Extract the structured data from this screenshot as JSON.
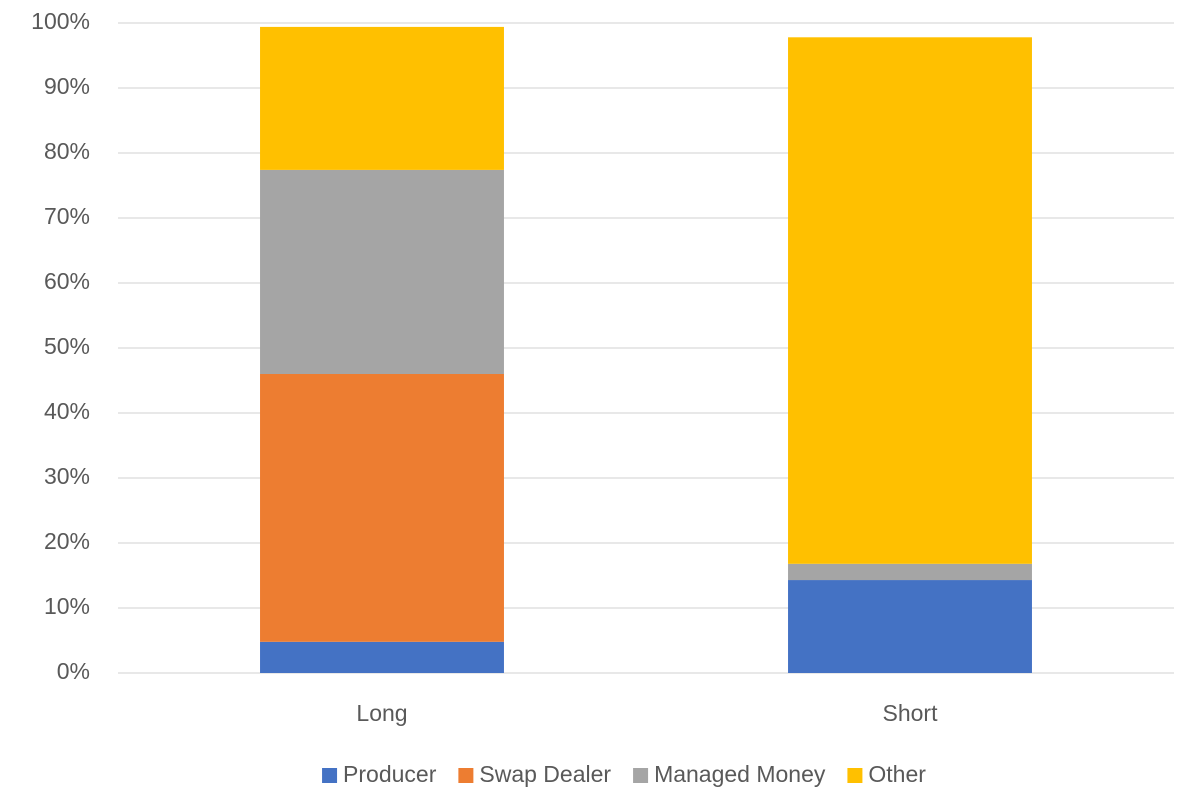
{
  "chart_data": {
    "type": "stacked_bar",
    "categories": [
      "Long",
      "Short"
    ],
    "series": [
      {
        "name": "Producer",
        "color": "#4472c4",
        "values": [
          4.8,
          14.3
        ]
      },
      {
        "name": "Swap Dealer",
        "color": "#ed7d31",
        "values": [
          41.2,
          0
        ]
      },
      {
        "name": "Managed Money",
        "color": "#a5a5a5",
        "values": [
          31.4,
          2.5
        ]
      },
      {
        "name": "Other",
        "color": "#ffc000",
        "values": [
          22.0,
          81.0
        ]
      }
    ],
    "ylim": [
      0,
      100
    ],
    "yticks": [
      {
        "value": 0,
        "label": "0%"
      },
      {
        "value": 10,
        "label": "10%"
      },
      {
        "value": 20,
        "label": "20%"
      },
      {
        "value": 30,
        "label": "30%"
      },
      {
        "value": 40,
        "label": "40%"
      },
      {
        "value": 50,
        "label": "50%"
      },
      {
        "value": 60,
        "label": "60%"
      },
      {
        "value": 70,
        "label": "70%"
      },
      {
        "value": 80,
        "label": "80%"
      },
      {
        "value": 90,
        "label": "90%"
      },
      {
        "value": 100,
        "label": "100%"
      }
    ],
    "grid": true,
    "legend": "bottom"
  }
}
